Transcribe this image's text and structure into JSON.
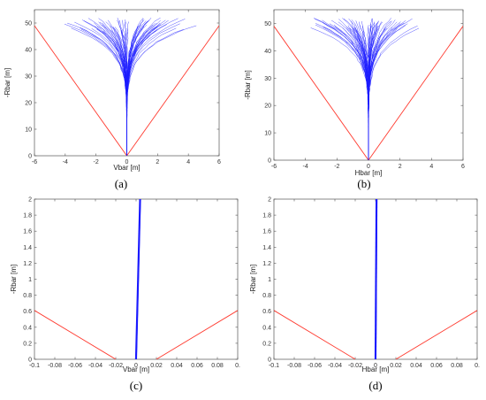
{
  "chart_data": [
    {
      "panel": "(a)",
      "type": "line",
      "xlabel": "Vbar  [m]",
      "ylabel": "-Rbar  [m]",
      "xlim": [
        -6.5,
        6.5
      ],
      "ylim": [
        0,
        55
      ],
      "xticks": [
        "-6",
        "-4",
        "-2",
        "0",
        "2",
        "4",
        "6"
      ],
      "yticks": [
        "0",
        "10",
        "20",
        "30",
        "40",
        "50"
      ],
      "grid": false,
      "series": [
        {
          "role": "approach-cone",
          "color": "#ff3b30",
          "x": [
            -6.5,
            0,
            6.5
          ],
          "y": [
            49,
            0,
            49
          ]
        },
        {
          "role": "trajectories",
          "color": "#1a1aff",
          "converge_at": [
            0,
            0
          ],
          "start_y_range": [
            47,
            52
          ],
          "start_x_range": [
            -4.8,
            5.2
          ],
          "count": 70
        }
      ]
    },
    {
      "panel": "(b)",
      "type": "line",
      "xlabel": "Hbar  [m]",
      "ylabel": "-Rbar  [m]",
      "xlim": [
        -6.5,
        6.5
      ],
      "ylim": [
        0,
        55
      ],
      "xticks": [
        "-6",
        "-4",
        "-2",
        "0",
        "2",
        "4",
        "6"
      ],
      "yticks": [
        "0",
        "10",
        "20",
        "30",
        "40",
        "50"
      ],
      "grid": false,
      "series": [
        {
          "role": "approach-cone",
          "color": "#ff3b30",
          "x": [
            -6.5,
            0,
            6.5
          ],
          "y": [
            49,
            0,
            49
          ]
        },
        {
          "role": "trajectories",
          "color": "#1a1aff",
          "converge_at": [
            0,
            0
          ],
          "start_y_range": [
            48,
            52
          ],
          "start_x_range": [
            -4,
            4
          ],
          "count": 70
        }
      ]
    },
    {
      "panel": "(c)",
      "type": "line",
      "xlabel": "Vbar  [m]",
      "ylabel": "-Rbar  [m]",
      "xlim": [
        -0.1,
        0.1
      ],
      "ylim": [
        0,
        2
      ],
      "xticks": [
        "-0.1",
        "-0.08",
        "-0.06",
        "-0.04",
        "-0.02",
        "0",
        "0.02",
        "0.04",
        "0.06",
        "0.08",
        "0."
      ],
      "yticks": [
        "0",
        "0.2",
        "0.4",
        "0.6",
        "0.8",
        "1",
        "1.2",
        "1.4",
        "1.6",
        "1.8",
        "2"
      ],
      "grid": false,
      "series": [
        {
          "role": "approach-cone",
          "color": "#ff3b30",
          "x": [
            -0.1,
            -0.02,
            null,
            0.02,
            0.1
          ],
          "y": [
            0.61,
            0,
            null,
            0,
            0.61
          ]
        },
        {
          "role": "trajectory-bundle",
          "color": "#1a1aff",
          "x": [
            0.0,
            0.004
          ],
          "y": [
            0,
            2
          ]
        }
      ]
    },
    {
      "panel": "(d)",
      "type": "line",
      "xlabel": "Hbar  [m]",
      "ylabel": "-Rbar  [m]",
      "xlim": [
        -0.1,
        0.1
      ],
      "ylim": [
        0,
        2
      ],
      "xticks": [
        "-0.1",
        "-0.08",
        "-0.06",
        "-0.04",
        "-0.02",
        "0",
        "0.02",
        "0.04",
        "0.06",
        "0.08",
        "0."
      ],
      "yticks": [
        "0",
        "0.2",
        "0.4",
        "0.6",
        "0.8",
        "1",
        "1.2",
        "1.4",
        "1.6",
        "1.8",
        "2"
      ],
      "grid": false,
      "series": [
        {
          "role": "approach-cone",
          "color": "#ff3b30",
          "x": [
            -0.1,
            -0.02,
            null,
            0.02,
            0.1
          ],
          "y": [
            0.61,
            0,
            null,
            0,
            0.61
          ]
        },
        {
          "role": "trajectory-bundle",
          "color": "#1a1aff",
          "x": [
            0.0,
            0.001
          ],
          "y": [
            0,
            2
          ]
        }
      ]
    }
  ]
}
